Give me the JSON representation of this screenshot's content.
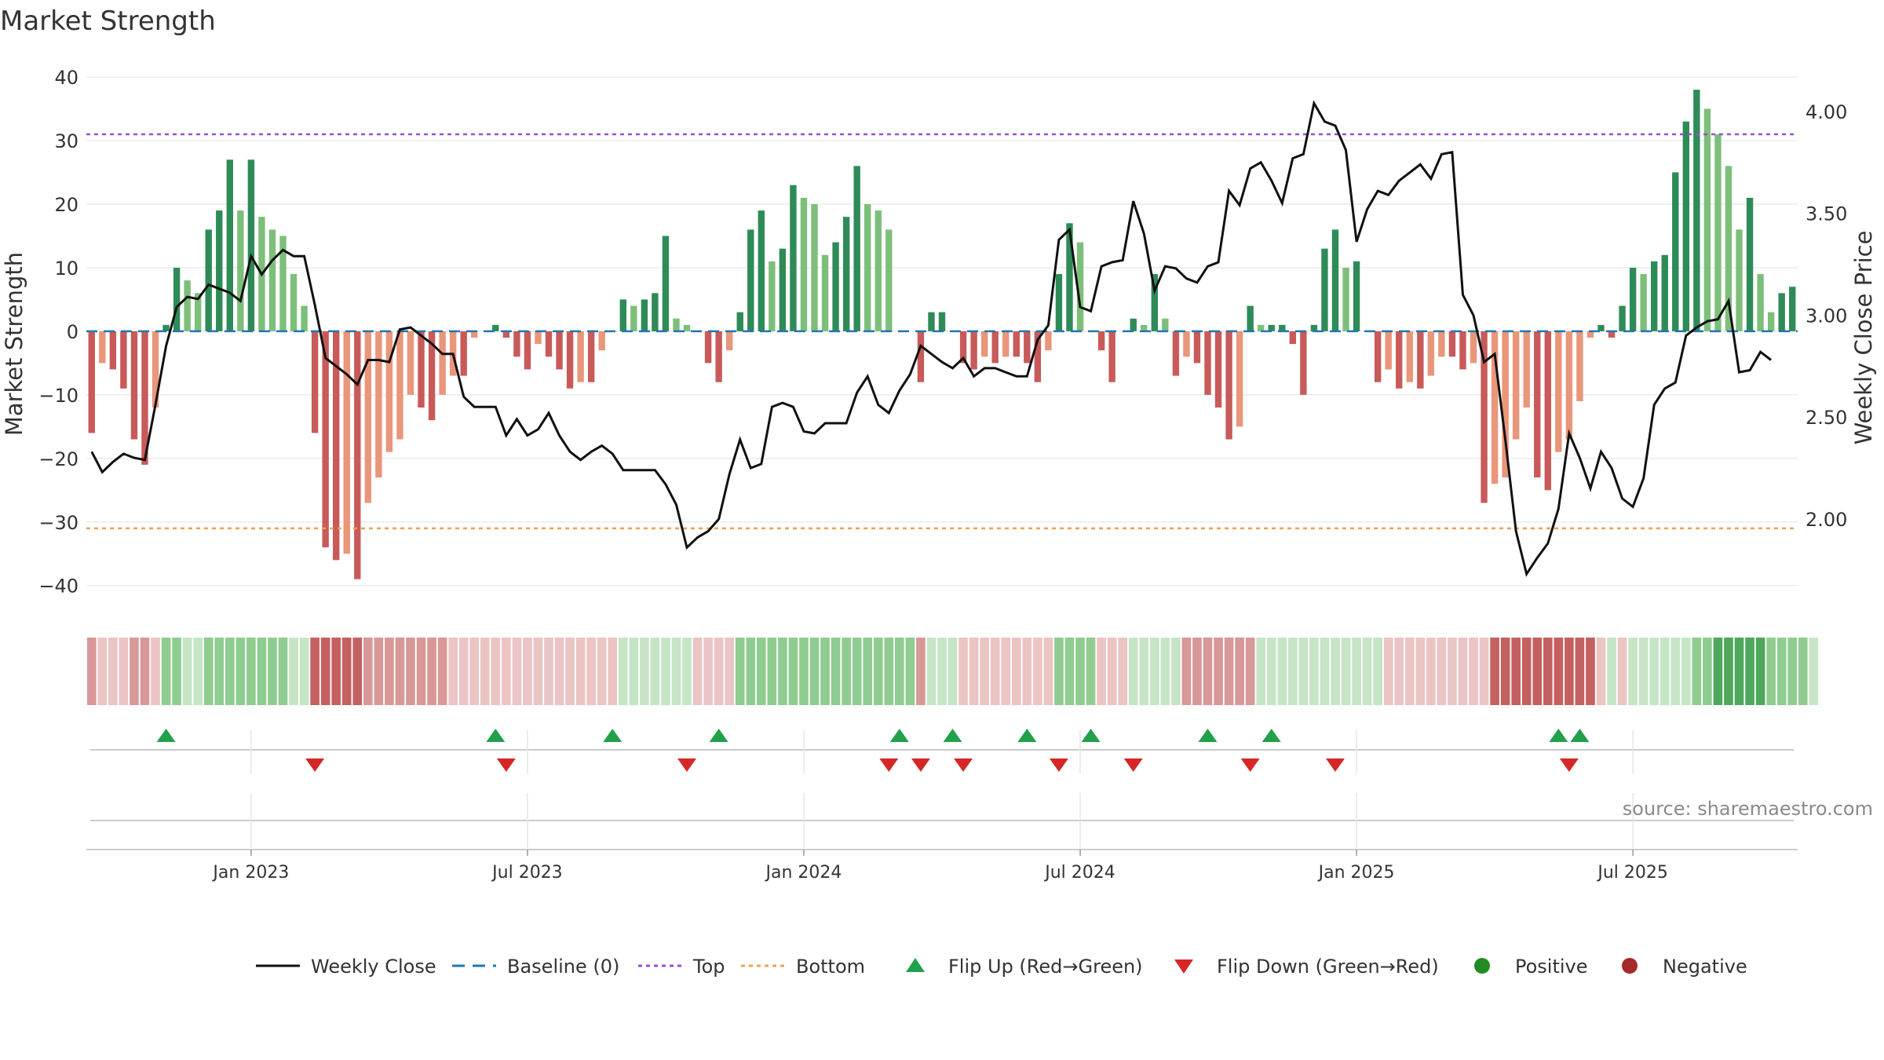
{
  "title": "Market Strength",
  "source": "source: sharemaestro.com",
  "colors": {
    "green_dark": "#2e8b57",
    "green_light": "#7dbf7a",
    "red_dark": "#c85a5a",
    "red_light": "#e9967a",
    "line": "#111111",
    "baseline": "#1f77b4",
    "top": "#9b4fd0",
    "bottom": "#f0a050",
    "flip_up": "#22a04b",
    "flip_down": "#d62728",
    "positive": "#228b22",
    "negative": "#a52a2a"
  },
  "chart_data": {
    "type": "bar+line",
    "title": "Market Strength",
    "ylabel": "Market Strength",
    "y2label": "Weekly Close Price",
    "ylim": [
      -43,
      41
    ],
    "y2lim": [
      1.58,
      4.2
    ],
    "yticks": [
      40,
      30,
      20,
      10,
      0,
      -10,
      -20,
      -30,
      -40
    ],
    "yticklabels": [
      "40",
      "30",
      "20",
      "10",
      "0",
      "−10",
      "−20",
      "−30",
      "−40"
    ],
    "y2ticks": [
      4.0,
      3.5,
      3.0,
      2.5,
      2.0
    ],
    "y2ticklabels": [
      "4.00",
      "3.50",
      "3.00",
      "2.50",
      "2.00"
    ],
    "xlabels": [
      "Jan 2023",
      "Jul 2023",
      "Jan 2024",
      "Jul 2024",
      "Jan 2025",
      "Jul 2025"
    ],
    "xlabel_weeks": [
      15,
      41,
      67,
      93,
      119,
      145
    ],
    "thresholds": {
      "top": 31,
      "bottom": -31,
      "baseline": 0
    },
    "strength": [
      -16,
      -5,
      -6,
      -9,
      -17,
      -21,
      -12,
      1,
      10,
      8,
      6,
      16,
      19,
      27,
      19,
      27,
      18,
      16,
      15,
      9,
      4,
      -16,
      -34,
      -36,
      -35,
      -39,
      -27,
      -23,
      -19,
      -17,
      -10,
      -12,
      -14,
      -10,
      -7,
      -7,
      -1,
      0,
      1,
      -1,
      -4,
      -6,
      -2,
      -4,
      -6,
      -9,
      -8,
      -8,
      -3,
      0,
      5,
      4,
      5,
      6,
      15,
      2,
      1,
      0,
      -5,
      -8,
      -3,
      3,
      16,
      19,
      11,
      13,
      23,
      21,
      20,
      12,
      14,
      18,
      26,
      20,
      19,
      16,
      0,
      0,
      -8,
      3,
      3,
      0,
      -5,
      -6,
      -4,
      -5,
      -4,
      -4,
      -5,
      -8,
      -3,
      9,
      17,
      14,
      0,
      -3,
      -8,
      0,
      2,
      1,
      9,
      2,
      -7,
      -4,
      -5,
      -10,
      -12,
      -17,
      -15,
      4,
      1,
      1,
      1,
      -2,
      -10,
      1,
      13,
      16,
      10,
      11,
      0,
      -8,
      -6,
      -9,
      -8,
      -9,
      -7,
      -4,
      -4,
      -6,
      -5,
      -27,
      -24,
      -23,
      -17,
      -12,
      -23,
      -25,
      -19,
      -17,
      -11,
      -1,
      1,
      -1,
      4,
      10,
      9,
      11,
      12,
      25,
      33,
      38,
      35,
      31,
      26,
      16,
      21,
      9,
      3,
      6,
      7
    ],
    "close": [
      2.33,
      2.23,
      2.28,
      2.32,
      2.3,
      2.29,
      2.56,
      2.85,
      3.04,
      3.09,
      3.08,
      3.15,
      3.13,
      3.11,
      3.07,
      3.29,
      3.2,
      3.27,
      3.32,
      3.29,
      3.29,
      3.05,
      2.79,
      2.75,
      2.71,
      2.66,
      2.78,
      2.78,
      2.77,
      2.93,
      2.94,
      2.9,
      2.86,
      2.81,
      2.81,
      2.6,
      2.55,
      2.55,
      2.55,
      2.41,
      2.49,
      2.41,
      2.44,
      2.52,
      2.41,
      2.33,
      2.29,
      2.33,
      2.36,
      2.32,
      2.24,
      2.24,
      2.24,
      2.24,
      2.17,
      2.07,
      1.86,
      1.91,
      1.94,
      2.0,
      2.22,
      2.39,
      2.25,
      2.27,
      2.55,
      2.57,
      2.55,
      2.43,
      2.42,
      2.47,
      2.47,
      2.47,
      2.62,
      2.7,
      2.56,
      2.52,
      2.63,
      2.71,
      2.85,
      2.81,
      2.77,
      2.74,
      2.79,
      2.7,
      2.74,
      2.74,
      2.72,
      2.7,
      2.7,
      2.88,
      2.95,
      3.37,
      3.42,
      3.04,
      3.02,
      3.24,
      3.26,
      3.27,
      3.56,
      3.4,
      3.12,
      3.24,
      3.23,
      3.18,
      3.16,
      3.24,
      3.26,
      3.61,
      3.54,
      3.72,
      3.75,
      3.66,
      3.55,
      3.77,
      3.79,
      4.04,
      3.95,
      3.93,
      3.81,
      3.36,
      3.52,
      3.61,
      3.59,
      3.66,
      3.7,
      3.74,
      3.67,
      3.79,
      3.8,
      3.1,
      3.0,
      2.77,
      2.81,
      2.39,
      1.94,
      1.73,
      1.81,
      1.88,
      2.05,
      2.42,
      2.3,
      2.15,
      2.33,
      2.25,
      2.1,
      2.06,
      2.2,
      2.56,
      2.64,
      2.67,
      2.9,
      2.94,
      2.97,
      2.98,
      3.07,
      2.72,
      2.73,
      2.82,
      2.78
    ],
    "state_bars": [
      -2,
      -1,
      -1,
      -1,
      -2,
      -2,
      -1,
      2,
      2,
      1,
      1,
      2,
      2,
      2,
      2,
      2,
      2,
      2,
      2,
      1,
      1,
      -3,
      -3,
      -3,
      -3,
      -3,
      -2,
      -2,
      -2,
      -2,
      -2,
      -2,
      -2,
      -2,
      -1,
      -1,
      -1,
      -1,
      -1,
      -1,
      -1,
      -1,
      -1,
      -1,
      -1,
      -1,
      -1,
      -1,
      -1,
      -1,
      1,
      1,
      1,
      1,
      1,
      1,
      1,
      -1,
      -1,
      -1,
      -1,
      2,
      2,
      2,
      2,
      2,
      2,
      2,
      2,
      2,
      2,
      2,
      2,
      2,
      2,
      2,
      2,
      2,
      -2,
      1,
      1,
      1,
      -1,
      -1,
      -1,
      -1,
      -1,
      -1,
      -1,
      -1,
      -1,
      2,
      2,
      2,
      2,
      -1,
      -1,
      -1,
      1,
      1,
      1,
      1,
      1,
      -2,
      -2,
      -2,
      -2,
      -2,
      -2,
      -2,
      1,
      1,
      1,
      1,
      1,
      1,
      1,
      1,
      1,
      1,
      1,
      1,
      -1,
      -1,
      -1,
      -1,
      -1,
      -1,
      -1,
      -1,
      -1,
      -1,
      -3,
      -3,
      -3,
      -3,
      -3,
      -3,
      -3,
      -3,
      -3,
      -3,
      -1,
      1,
      -1,
      1,
      1,
      1,
      1,
      1,
      1,
      2,
      2,
      3,
      3,
      3,
      3,
      3,
      2,
      2,
      2,
      2,
      1
    ],
    "flip_up_weeks": [
      7,
      38,
      49,
      59,
      76,
      81,
      88,
      94,
      105,
      111,
      138,
      140
    ],
    "flip_down_weeks": [
      21,
      39,
      56,
      75,
      78,
      82,
      91,
      98,
      109,
      117,
      139
    ],
    "legend": [
      "Weekly Close",
      "Baseline (0)",
      "Top",
      "Bottom",
      "Flip Up (Red→Green)",
      "Flip Down (Green→Red)",
      "Positive",
      "Negative"
    ]
  }
}
